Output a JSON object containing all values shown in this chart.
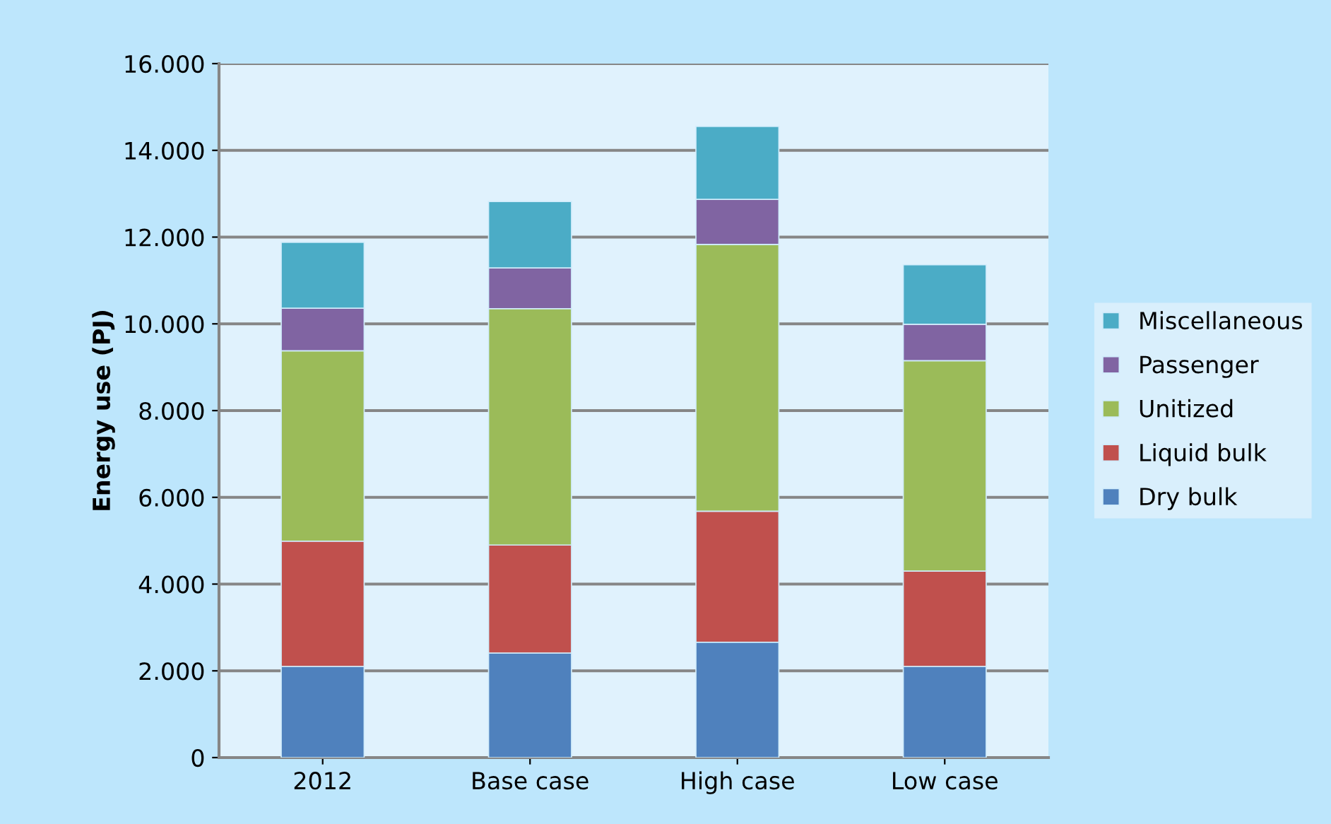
{
  "chart_data": {
    "type": "bar",
    "stacked": true,
    "ylabel": "Energy use (PJ)",
    "categories": [
      "2012",
      "Base case",
      "High case",
      "Low case"
    ],
    "series": [
      {
        "name": "Dry bulk",
        "color": "#4f81bd",
        "values": [
          2100,
          2410,
          2660,
          2100
        ]
      },
      {
        "name": "Liquid bulk",
        "color": "#c0504d",
        "values": [
          2890,
          2490,
          3020,
          2200
        ]
      },
      {
        "name": "Unitized",
        "color": "#9bbb59",
        "values": [
          4390,
          5450,
          6150,
          4850
        ]
      },
      {
        "name": "Passenger",
        "color": "#8064a2",
        "values": [
          980,
          940,
          1040,
          840
        ]
      },
      {
        "name": "Miscellaneous",
        "color": "#4bacc6",
        "values": [
          1520,
          1530,
          1680,
          1370
        ]
      }
    ],
    "ylim": [
      0,
      16000
    ],
    "yticks": [
      {
        "value": 0,
        "label": "0"
      },
      {
        "value": 2000,
        "label": "2.000"
      },
      {
        "value": 4000,
        "label": "4.000"
      },
      {
        "value": 6000,
        "label": "6.000"
      },
      {
        "value": 8000,
        "label": "8.000"
      },
      {
        "value": 10000,
        "label": "10.000"
      },
      {
        "value": 12000,
        "label": "12.000"
      },
      {
        "value": 14000,
        "label": "14.000"
      },
      {
        "value": 16000,
        "label": "16.000"
      }
    ],
    "grid": "y",
    "legend": "right"
  }
}
